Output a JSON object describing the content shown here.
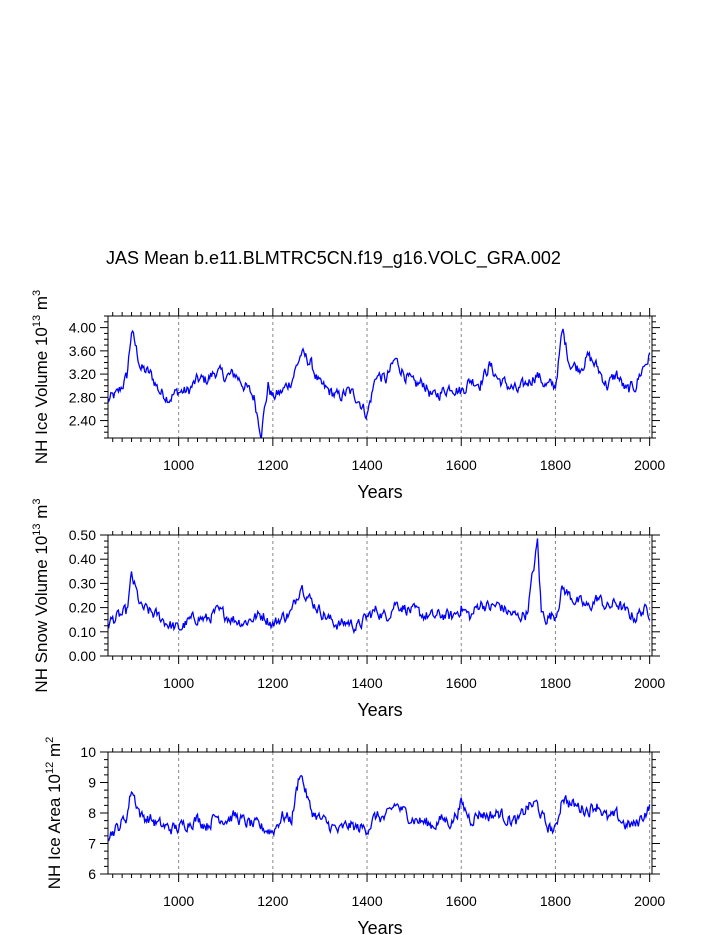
{
  "title": "JAS Mean b.e11.BLMTRC5CN.f19_g16.VOLC_GRA.002",
  "chart_data": [
    {
      "type": "line",
      "ylabel": {
        "prefix": "NH Ice Volume 10",
        "exp": "13",
        "unit": " m",
        "unit_exp": "3"
      },
      "xlabel": "Years",
      "xlim": [
        850,
        2005
      ],
      "ylim": [
        2.1,
        4.2
      ],
      "yticks": [
        2.4,
        2.8,
        3.2,
        3.6,
        4.0
      ],
      "ytick_labels": [
        "2.40",
        "2.80",
        "3.20",
        "3.60",
        "4.00"
      ],
      "xticks": [
        1000,
        1200,
        1400,
        1600,
        1800,
        2000
      ],
      "xtick_labels": [
        "1000",
        "1200",
        "1400",
        "1600",
        "1800",
        "2000"
      ],
      "grid": "dashed-vertical-at-xticks",
      "line_color": "#0000ff",
      "series": [
        {
          "x": [
            850,
            870,
            890,
            900,
            920,
            940,
            960,
            980,
            1000,
            1020,
            1040,
            1060,
            1080,
            1100,
            1120,
            1140,
            1160,
            1175,
            1190,
            1200,
            1220,
            1240,
            1260,
            1280,
            1300,
            1320,
            1340,
            1360,
            1380,
            1400,
            1420,
            1440,
            1460,
            1480,
            1500,
            1520,
            1540,
            1560,
            1580,
            1600,
            1620,
            1640,
            1660,
            1680,
            1700,
            1720,
            1740,
            1760,
            1780,
            1800,
            1815,
            1830,
            1850,
            1870,
            1890,
            1910,
            1930,
            1950,
            1970,
            1985,
            2000
          ],
          "values": [
            2.75,
            2.85,
            3.15,
            3.95,
            3.3,
            3.2,
            2.9,
            2.8,
            2.9,
            2.9,
            3.1,
            3.1,
            3.25,
            3.15,
            3.2,
            3.0,
            2.8,
            2.2,
            3.0,
            2.8,
            2.9,
            3.1,
            3.55,
            3.4,
            3.0,
            2.9,
            2.8,
            2.9,
            2.8,
            2.5,
            3.2,
            3.1,
            3.45,
            3.2,
            3.0,
            3.05,
            2.8,
            2.9,
            3.0,
            2.9,
            3.1,
            3.05,
            3.35,
            3.1,
            3.0,
            2.9,
            3.05,
            3.2,
            3.0,
            3.0,
            3.95,
            3.4,
            3.3,
            3.5,
            3.3,
            3.0,
            3.2,
            2.9,
            3.0,
            3.3,
            3.5
          ]
        }
      ]
    },
    {
      "type": "line",
      "ylabel": {
        "prefix": "NH Snow Volume 10",
        "exp": "13",
        "unit": " m",
        "unit_exp": "3"
      },
      "xlabel": "Years",
      "xlim": [
        850,
        2005
      ],
      "ylim": [
        0.0,
        0.5
      ],
      "yticks": [
        0.0,
        0.1,
        0.2,
        0.3,
        0.4,
        0.5
      ],
      "ytick_labels": [
        "0.00",
        "0.10",
        "0.20",
        "0.30",
        "0.40",
        "0.50"
      ],
      "xticks": [
        1000,
        1200,
        1400,
        1600,
        1800,
        2000
      ],
      "xtick_labels": [
        "1000",
        "1200",
        "1400",
        "1600",
        "1800",
        "2000"
      ],
      "grid": "dashed-vertical-at-xticks",
      "line_color": "#0000ff",
      "series": [
        {
          "x": [
            850,
            870,
            890,
            900,
            920,
            940,
            960,
            980,
            1000,
            1020,
            1040,
            1060,
            1080,
            1100,
            1120,
            1140,
            1160,
            1180,
            1200,
            1220,
            1240,
            1260,
            1280,
            1300,
            1320,
            1340,
            1360,
            1380,
            1400,
            1420,
            1440,
            1460,
            1480,
            1500,
            1520,
            1540,
            1560,
            1580,
            1600,
            1620,
            1640,
            1660,
            1680,
            1700,
            1720,
            1740,
            1762,
            1770,
            1780,
            1800,
            1815,
            1830,
            1850,
            1870,
            1890,
            1910,
            1930,
            1950,
            1970,
            1985,
            2000
          ],
          "values": [
            0.14,
            0.16,
            0.18,
            0.33,
            0.2,
            0.18,
            0.16,
            0.13,
            0.11,
            0.14,
            0.16,
            0.15,
            0.18,
            0.17,
            0.15,
            0.14,
            0.16,
            0.17,
            0.13,
            0.16,
            0.18,
            0.3,
            0.23,
            0.19,
            0.15,
            0.13,
            0.14,
            0.12,
            0.16,
            0.19,
            0.16,
            0.22,
            0.2,
            0.18,
            0.17,
            0.16,
            0.17,
            0.16,
            0.2,
            0.16,
            0.22,
            0.2,
            0.21,
            0.18,
            0.16,
            0.18,
            0.47,
            0.18,
            0.16,
            0.17,
            0.28,
            0.25,
            0.22,
            0.2,
            0.24,
            0.2,
            0.22,
            0.18,
            0.16,
            0.19,
            0.18
          ]
        }
      ]
    },
    {
      "type": "line",
      "ylabel": {
        "prefix": "NH Ice Area 10",
        "exp": "12",
        "unit": " m",
        "unit_exp": "2"
      },
      "xlabel": "Years",
      "xlim": [
        850,
        2005
      ],
      "ylim": [
        6,
        10
      ],
      "yticks": [
        6,
        7,
        8,
        9,
        10
      ],
      "ytick_labels": [
        "6",
        "7",
        "8",
        "9",
        "10"
      ],
      "xticks": [
        1000,
        1200,
        1400,
        1600,
        1800,
        2000
      ],
      "xtick_labels": [
        "1000",
        "1200",
        "1400",
        "1600",
        "1800",
        "2000"
      ],
      "grid": "dashed-vertical-at-xticks",
      "line_color": "#0000ff",
      "series": [
        {
          "x": [
            850,
            870,
            890,
            900,
            920,
            940,
            960,
            980,
            1000,
            1020,
            1040,
            1060,
            1080,
            1100,
            1120,
            1140,
            1160,
            1180,
            1200,
            1220,
            1240,
            1258,
            1280,
            1300,
            1320,
            1340,
            1360,
            1380,
            1400,
            1420,
            1440,
            1460,
            1480,
            1500,
            1520,
            1540,
            1560,
            1580,
            1600,
            1620,
            1640,
            1660,
            1680,
            1700,
            1720,
            1740,
            1760,
            1780,
            1800,
            1815,
            1830,
            1850,
            1870,
            1890,
            1910,
            1930,
            1950,
            1970,
            1985,
            2000
          ],
          "values": [
            7.3,
            7.5,
            7.9,
            8.8,
            7.9,
            7.8,
            7.6,
            7.5,
            7.5,
            7.7,
            7.8,
            7.6,
            7.9,
            7.8,
            7.9,
            7.7,
            7.6,
            7.5,
            7.4,
            7.9,
            7.8,
            9.4,
            8.1,
            7.8,
            7.6,
            7.4,
            7.6,
            7.5,
            7.5,
            7.9,
            7.8,
            8.3,
            8.0,
            7.8,
            7.7,
            7.6,
            7.8,
            7.7,
            8.3,
            7.8,
            8.0,
            7.9,
            8.0,
            7.8,
            7.7,
            8.2,
            8.3,
            7.6,
            7.4,
            8.6,
            8.3,
            8.2,
            8.1,
            8.3,
            7.8,
            7.9,
            7.6,
            7.6,
            7.9,
            8.2
          ]
        }
      ]
    }
  ]
}
